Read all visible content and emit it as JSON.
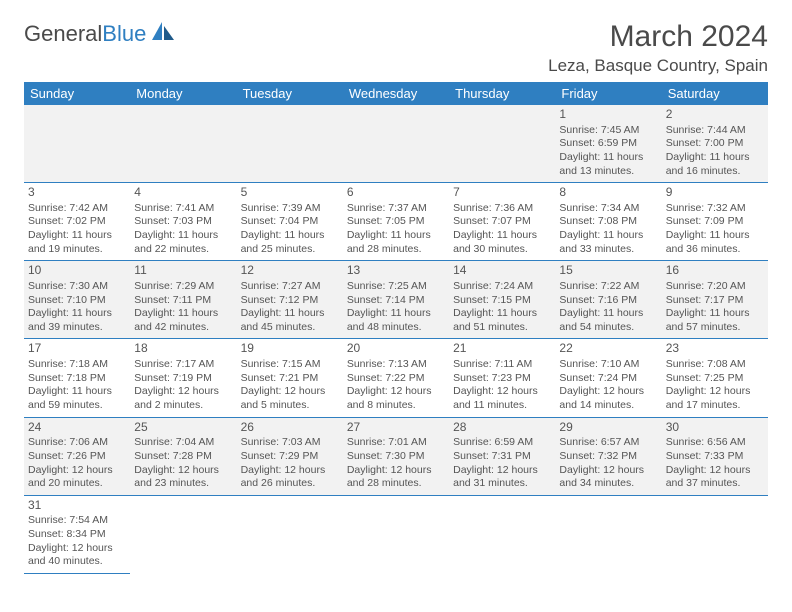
{
  "logo": {
    "text1": "General",
    "text2": "Blue"
  },
  "title": "March 2024",
  "location": "Leza, Basque Country, Spain",
  "colors": {
    "header_blue": "#2f7fc1",
    "text_gray": "#4a4a4a",
    "alt_row": "#f2f2f2",
    "border": "#2f7fc1"
  },
  "day_headers": [
    "Sunday",
    "Monday",
    "Tuesday",
    "Wednesday",
    "Thursday",
    "Friday",
    "Saturday"
  ],
  "weeks": [
    [
      null,
      null,
      null,
      null,
      null,
      {
        "n": "1",
        "sr": "Sunrise: 7:45 AM",
        "ss": "Sunset: 6:59 PM",
        "dl": "Daylight: 11 hours and 13 minutes."
      },
      {
        "n": "2",
        "sr": "Sunrise: 7:44 AM",
        "ss": "Sunset: 7:00 PM",
        "dl": "Daylight: 11 hours and 16 minutes."
      }
    ],
    [
      {
        "n": "3",
        "sr": "Sunrise: 7:42 AM",
        "ss": "Sunset: 7:02 PM",
        "dl": "Daylight: 11 hours and 19 minutes."
      },
      {
        "n": "4",
        "sr": "Sunrise: 7:41 AM",
        "ss": "Sunset: 7:03 PM",
        "dl": "Daylight: 11 hours and 22 minutes."
      },
      {
        "n": "5",
        "sr": "Sunrise: 7:39 AM",
        "ss": "Sunset: 7:04 PM",
        "dl": "Daylight: 11 hours and 25 minutes."
      },
      {
        "n": "6",
        "sr": "Sunrise: 7:37 AM",
        "ss": "Sunset: 7:05 PM",
        "dl": "Daylight: 11 hours and 28 minutes."
      },
      {
        "n": "7",
        "sr": "Sunrise: 7:36 AM",
        "ss": "Sunset: 7:07 PM",
        "dl": "Daylight: 11 hours and 30 minutes."
      },
      {
        "n": "8",
        "sr": "Sunrise: 7:34 AM",
        "ss": "Sunset: 7:08 PM",
        "dl": "Daylight: 11 hours and 33 minutes."
      },
      {
        "n": "9",
        "sr": "Sunrise: 7:32 AM",
        "ss": "Sunset: 7:09 PM",
        "dl": "Daylight: 11 hours and 36 minutes."
      }
    ],
    [
      {
        "n": "10",
        "sr": "Sunrise: 7:30 AM",
        "ss": "Sunset: 7:10 PM",
        "dl": "Daylight: 11 hours and 39 minutes."
      },
      {
        "n": "11",
        "sr": "Sunrise: 7:29 AM",
        "ss": "Sunset: 7:11 PM",
        "dl": "Daylight: 11 hours and 42 minutes."
      },
      {
        "n": "12",
        "sr": "Sunrise: 7:27 AM",
        "ss": "Sunset: 7:12 PM",
        "dl": "Daylight: 11 hours and 45 minutes."
      },
      {
        "n": "13",
        "sr": "Sunrise: 7:25 AM",
        "ss": "Sunset: 7:14 PM",
        "dl": "Daylight: 11 hours and 48 minutes."
      },
      {
        "n": "14",
        "sr": "Sunrise: 7:24 AM",
        "ss": "Sunset: 7:15 PM",
        "dl": "Daylight: 11 hours and 51 minutes."
      },
      {
        "n": "15",
        "sr": "Sunrise: 7:22 AM",
        "ss": "Sunset: 7:16 PM",
        "dl": "Daylight: 11 hours and 54 minutes."
      },
      {
        "n": "16",
        "sr": "Sunrise: 7:20 AM",
        "ss": "Sunset: 7:17 PM",
        "dl": "Daylight: 11 hours and 57 minutes."
      }
    ],
    [
      {
        "n": "17",
        "sr": "Sunrise: 7:18 AM",
        "ss": "Sunset: 7:18 PM",
        "dl": "Daylight: 11 hours and 59 minutes."
      },
      {
        "n": "18",
        "sr": "Sunrise: 7:17 AM",
        "ss": "Sunset: 7:19 PM",
        "dl": "Daylight: 12 hours and 2 minutes."
      },
      {
        "n": "19",
        "sr": "Sunrise: 7:15 AM",
        "ss": "Sunset: 7:21 PM",
        "dl": "Daylight: 12 hours and 5 minutes."
      },
      {
        "n": "20",
        "sr": "Sunrise: 7:13 AM",
        "ss": "Sunset: 7:22 PM",
        "dl": "Daylight: 12 hours and 8 minutes."
      },
      {
        "n": "21",
        "sr": "Sunrise: 7:11 AM",
        "ss": "Sunset: 7:23 PM",
        "dl": "Daylight: 12 hours and 11 minutes."
      },
      {
        "n": "22",
        "sr": "Sunrise: 7:10 AM",
        "ss": "Sunset: 7:24 PM",
        "dl": "Daylight: 12 hours and 14 minutes."
      },
      {
        "n": "23",
        "sr": "Sunrise: 7:08 AM",
        "ss": "Sunset: 7:25 PM",
        "dl": "Daylight: 12 hours and 17 minutes."
      }
    ],
    [
      {
        "n": "24",
        "sr": "Sunrise: 7:06 AM",
        "ss": "Sunset: 7:26 PM",
        "dl": "Daylight: 12 hours and 20 minutes."
      },
      {
        "n": "25",
        "sr": "Sunrise: 7:04 AM",
        "ss": "Sunset: 7:28 PM",
        "dl": "Daylight: 12 hours and 23 minutes."
      },
      {
        "n": "26",
        "sr": "Sunrise: 7:03 AM",
        "ss": "Sunset: 7:29 PM",
        "dl": "Daylight: 12 hours and 26 minutes."
      },
      {
        "n": "27",
        "sr": "Sunrise: 7:01 AM",
        "ss": "Sunset: 7:30 PM",
        "dl": "Daylight: 12 hours and 28 minutes."
      },
      {
        "n": "28",
        "sr": "Sunrise: 6:59 AM",
        "ss": "Sunset: 7:31 PM",
        "dl": "Daylight: 12 hours and 31 minutes."
      },
      {
        "n": "29",
        "sr": "Sunrise: 6:57 AM",
        "ss": "Sunset: 7:32 PM",
        "dl": "Daylight: 12 hours and 34 minutes."
      },
      {
        "n": "30",
        "sr": "Sunrise: 6:56 AM",
        "ss": "Sunset: 7:33 PM",
        "dl": "Daylight: 12 hours and 37 minutes."
      }
    ],
    [
      {
        "n": "31",
        "sr": "Sunrise: 7:54 AM",
        "ss": "Sunset: 8:34 PM",
        "dl": "Daylight: 12 hours and 40 minutes."
      },
      null,
      null,
      null,
      null,
      null,
      null
    ]
  ]
}
